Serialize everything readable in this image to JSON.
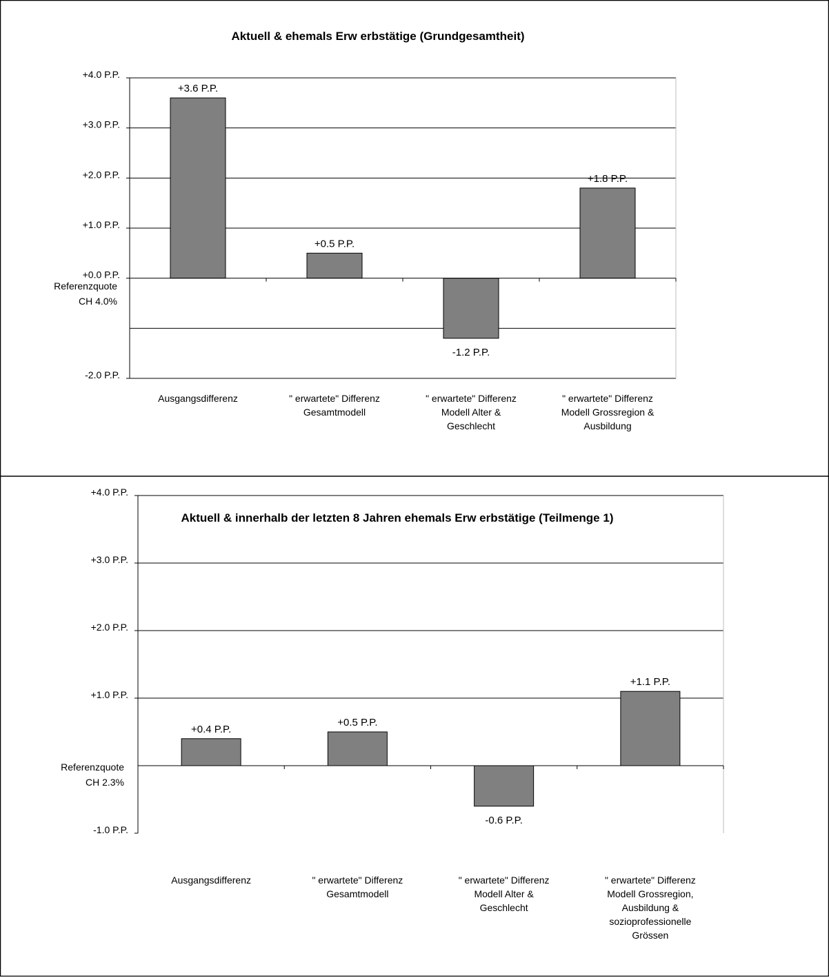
{
  "colors": {
    "bar_fill": "#808080",
    "bar_stroke": "#000000",
    "grid": "#000000",
    "background": "#ffffff"
  },
  "chart_data": [
    {
      "type": "bar",
      "title": "Aktuell & ehemals Erw erbstätige (Grundgesamtheit)",
      "categories": [
        [
          "Ausgangsdifferenz"
        ],
        [
          "\" erwartete\" Differenz",
          "Gesamtmodell"
        ],
        [
          "\" erwartete\" Differenz",
          "Modell Alter &",
          "Geschlecht"
        ],
        [
          "\" erwartete\" Differenz",
          "Modell Grossregion &",
          "Ausbildung"
        ]
      ],
      "values": [
        3.6,
        0.5,
        -1.2,
        1.8
      ],
      "data_labels": [
        "+3.6 P.P.",
        "+0.5 P.P.",
        "-1.2 P.P.",
        "+1.8 P.P."
      ],
      "ylim": [
        -2,
        4
      ],
      "yticks": [
        {
          "value": 4,
          "label": "+4.0 P.P."
        },
        {
          "value": 3,
          "label": "+3.0 P.P."
        },
        {
          "value": 2,
          "label": "+2.0 P.P."
        },
        {
          "value": 1,
          "label": "+1.0 P.P."
        },
        {
          "value": 0,
          "label": "+0.0 P.P."
        },
        {
          "value": -2,
          "label": "-2.0 P.P."
        }
      ],
      "gridlines": [
        4,
        3,
        2,
        1,
        0,
        -1,
        -2
      ],
      "reference_label": [
        "Referenzquote",
        "CH 4.0%"
      ],
      "grid": true,
      "legend": "none"
    },
    {
      "type": "bar",
      "title": "Aktuell & innerhalb der letzten 8 Jahren ehemals Erw erbstätige (Teilmenge 1)",
      "categories": [
        [
          "Ausgangsdifferenz"
        ],
        [
          "\" erwartete\" Differenz",
          "Gesamtmodell"
        ],
        [
          "\" erwartete\" Differenz",
          "Modell Alter &",
          "Geschlecht"
        ],
        [
          "\" erwartete\" Differenz",
          "Modell Grossregion,",
          "Ausbildung &",
          "sozioprofessionelle",
          "Grössen"
        ]
      ],
      "values": [
        0.4,
        0.5,
        -0.6,
        1.1
      ],
      "data_labels": [
        "+0.4 P.P.",
        "+0.5 P.P.",
        "-0.6 P.P.",
        "+1.1 P.P."
      ],
      "ylim": [
        -1,
        4
      ],
      "yticks": [
        {
          "value": 4,
          "label": "+4.0 P.P."
        },
        {
          "value": 3,
          "label": "+3.0 P.P."
        },
        {
          "value": 2,
          "label": "+2.0 P.P."
        },
        {
          "value": 1,
          "label": "+1.0 P.P."
        },
        {
          "value": -1,
          "label": "-1.0 P.P."
        }
      ],
      "gridlines": [
        4,
        3,
        2,
        1,
        0
      ],
      "reference_label": [
        "Referenzquote",
        "CH 2.3%"
      ],
      "grid": true,
      "legend": "none"
    }
  ]
}
